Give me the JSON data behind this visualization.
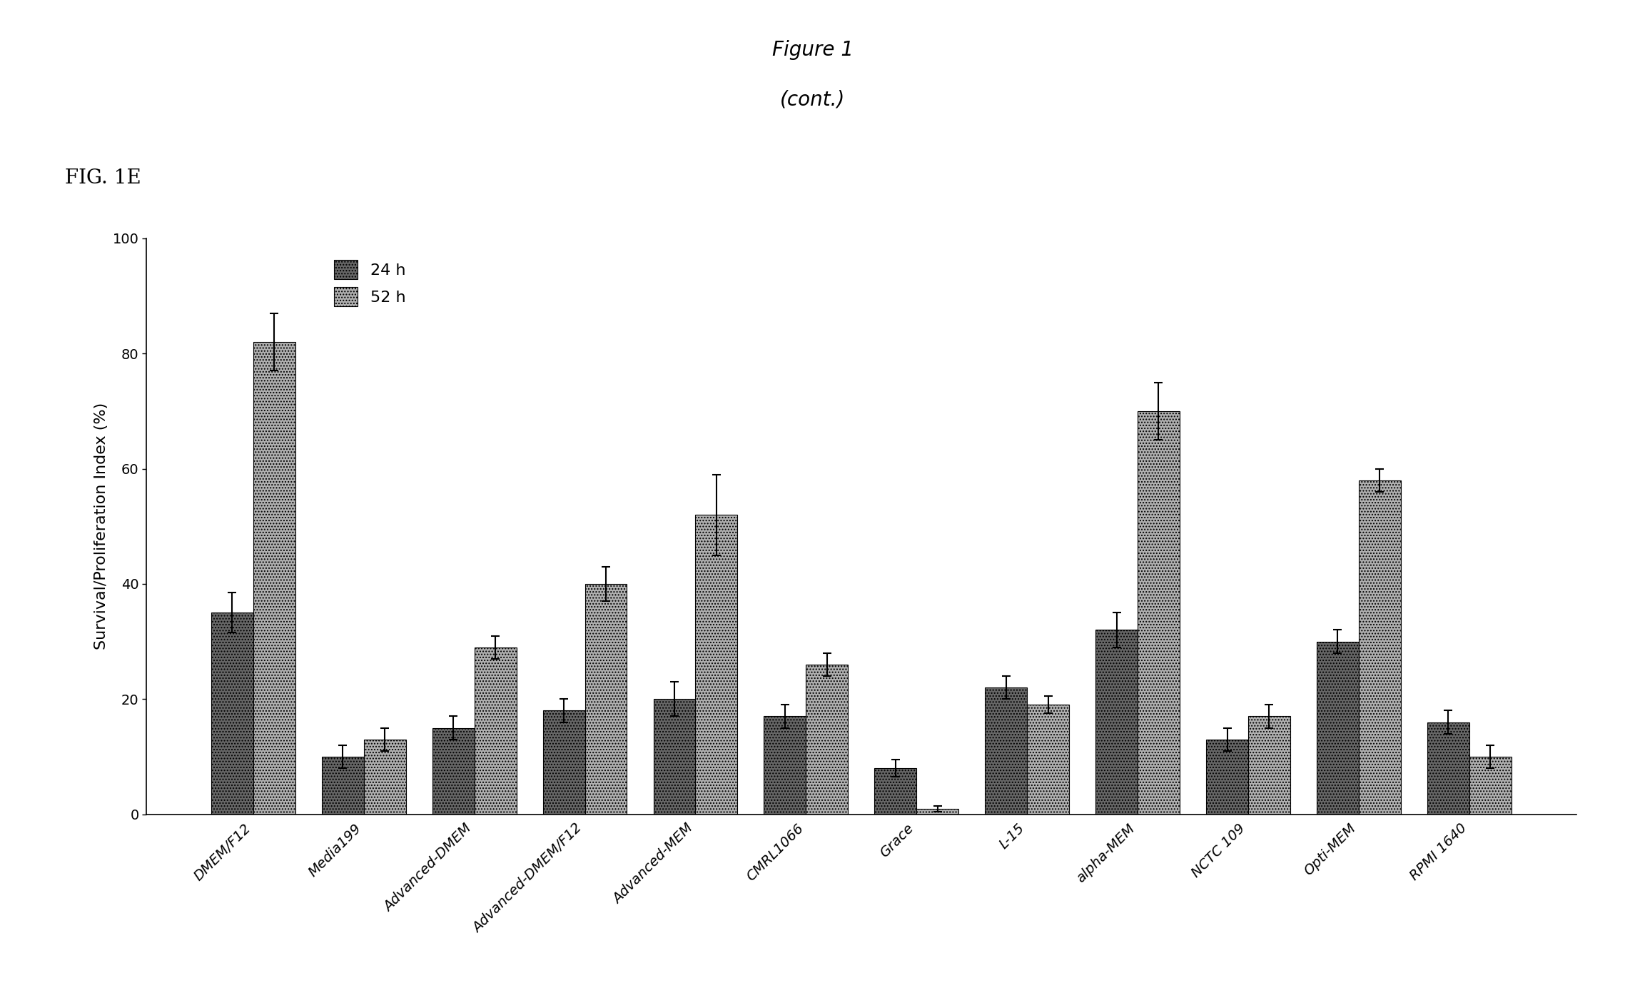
{
  "title_line1": "Figure 1",
  "title_line2": "(cont.)",
  "fig_label": "FIG. 1E",
  "ylabel": "Survival/Proliferation Index (%)",
  "ylim": [
    0,
    100
  ],
  "yticks": [
    0,
    20,
    40,
    60,
    80,
    100
  ],
  "categories": [
    "DMEM/F12",
    "Media199",
    "Advanced-DMEM",
    "Advanced-DMEM/F12",
    "Advanced-MEM",
    "CMRL1066",
    "Grace",
    "L-15",
    "alpha-MEM",
    "NCTC 109",
    "Opti-MEM",
    "RPMI 1640"
  ],
  "legend_labels": [
    "24 h",
    "52 h"
  ],
  "values_24h": [
    35,
    10,
    15,
    18,
    20,
    17,
    8,
    22,
    32,
    13,
    30,
    16
  ],
  "values_52h": [
    82,
    13,
    29,
    40,
    52,
    26,
    1,
    19,
    70,
    17,
    58,
    10
  ],
  "errors_24h": [
    3.5,
    2,
    2,
    2,
    3,
    2,
    1.5,
    2,
    3,
    2,
    2,
    2
  ],
  "errors_52h": [
    5,
    2,
    2,
    3,
    7,
    2,
    0.5,
    1.5,
    5,
    2,
    2,
    2
  ],
  "bar_width": 0.38,
  "color_24h": "#666666",
  "color_52h": "#b0b0b0",
  "hatch_24h": "....",
  "hatch_52h": "....",
  "background_color": "#ffffff",
  "title_fontsize": 20,
  "figlabel_fontsize": 20,
  "label_fontsize": 16,
  "tick_fontsize": 14,
  "legend_fontsize": 16
}
